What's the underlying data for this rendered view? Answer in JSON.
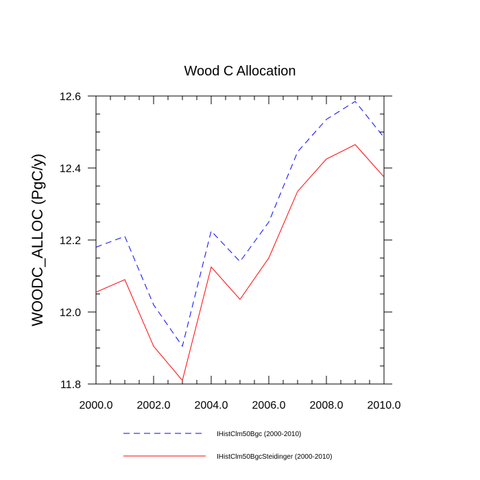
{
  "chart_data": {
    "type": "line",
    "title": "Wood C Allocation",
    "xlabel": "",
    "ylabel": "WOODC_ALLOC  (PgC/y)",
    "xlim": [
      2000,
      2010
    ],
    "ylim": [
      11.8,
      12.6
    ],
    "x_ticks": [
      "2000.0",
      "2002.0",
      "2004.0",
      "2006.0",
      "2008.0",
      "2010.0"
    ],
    "y_ticks": [
      "11.8",
      "12.0",
      "12.2",
      "12.4",
      "12.6"
    ],
    "grid": false,
    "legend_position": "bottom",
    "x": [
      2000,
      2001,
      2002,
      2003,
      2004,
      2005,
      2006,
      2007,
      2008,
      2009,
      2010
    ],
    "series": [
      {
        "name": "IHistClm50Bgc (2000-2010)",
        "color": "#0000ff",
        "dash": "dashed",
        "values": [
          12.18,
          12.21,
          12.02,
          11.905,
          12.225,
          12.14,
          12.25,
          12.445,
          12.535,
          12.585,
          12.485
        ]
      },
      {
        "name": "IHistClm50BgcSteidinger (2000-2010)",
        "color": "#ff0000",
        "dash": "solid",
        "values": [
          12.055,
          12.09,
          11.905,
          11.81,
          12.125,
          12.035,
          12.15,
          12.335,
          12.425,
          12.465,
          12.375
        ]
      }
    ]
  }
}
